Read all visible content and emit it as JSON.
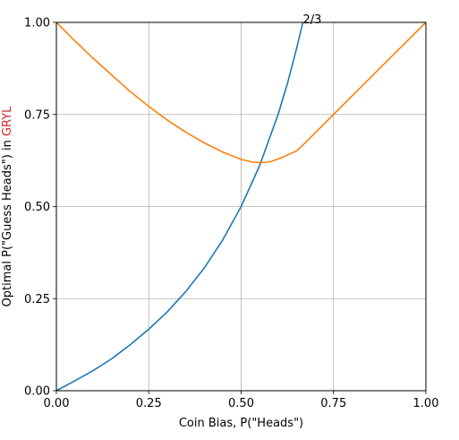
{
  "chart_data": {
    "type": "line",
    "xlabel": "Coin Bias, P(\"Heads\")",
    "ylabel_prefix": "Optimal P(\"Guess Heads\") in ",
    "ylabel_highlight": "GRYL",
    "ylabel_highlight_color": "#d62728",
    "xlim": [
      0.0,
      1.0
    ],
    "ylim": [
      0.0,
      1.0
    ],
    "xticks": [
      "0.00",
      "0.25",
      "0.50",
      "0.75",
      "1.00"
    ],
    "yticks": [
      "0.00",
      "0.25",
      "0.50",
      "0.75",
      "1.00"
    ],
    "grid": true,
    "annotation": {
      "text": "2/3",
      "x": 0.667,
      "y": 1.0
    },
    "series": [
      {
        "color": "#1f77b4",
        "x": [
          0.0,
          0.05,
          0.1,
          0.15,
          0.2,
          0.25,
          0.3,
          0.35,
          0.4,
          0.45,
          0.5,
          0.55,
          0.6,
          0.625,
          0.65,
          0.667
        ],
        "y": [
          0.0,
          0.027,
          0.055,
          0.087,
          0.125,
          0.167,
          0.214,
          0.269,
          0.333,
          0.409,
          0.5,
          0.611,
          0.75,
          0.833,
          0.929,
          1.0
        ]
      },
      {
        "color": "#ff7f0e",
        "x": [
          0.0,
          0.05,
          0.1,
          0.15,
          0.2,
          0.25,
          0.3,
          0.35,
          0.4,
          0.45,
          0.5,
          0.53,
          0.555,
          0.58,
          0.61,
          0.65,
          0.667,
          0.7,
          0.75,
          0.8,
          0.85,
          0.9,
          0.95,
          1.0
        ],
        "y": [
          1.0,
          0.95,
          0.902,
          0.857,
          0.812,
          0.772,
          0.735,
          0.702,
          0.673,
          0.648,
          0.628,
          0.621,
          0.619,
          0.622,
          0.633,
          0.651,
          0.667,
          0.7,
          0.75,
          0.8,
          0.85,
          0.9,
          0.95,
          1.0
        ]
      }
    ]
  }
}
